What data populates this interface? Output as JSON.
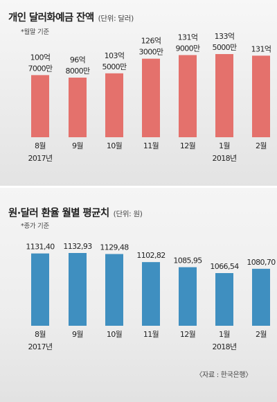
{
  "colors": {
    "top_bar": "#e4716c",
    "bottom_bar": "#3f8fc0"
  },
  "source": "〈자료 : 한국은행〉",
  "chart_data": [
    {
      "type": "bar",
      "title": "개인 달러화예금 잔액",
      "unit": "(단위: 달러)",
      "note": "*월말 기준",
      "categories": [
        "8월",
        "9월",
        "10월",
        "11월",
        "12월",
        "1월",
        "2월"
      ],
      "year_labels": [
        "2017년",
        "",
        "",
        "",
        "",
        "2018년",
        ""
      ],
      "values": [
        10070000000,
        9680000000,
        10350000000,
        12630000000,
        13190000000,
        13350000000,
        13100000000
      ],
      "value_labels": [
        [
          "100억",
          "7000만"
        ],
        [
          "96억",
          "8000만"
        ],
        [
          "103억",
          "5000만"
        ],
        [
          "126억",
          "3000만"
        ],
        [
          "131억",
          "9000만"
        ],
        [
          "133억",
          "5000만"
        ],
        [
          "131억"
        ]
      ]
    },
    {
      "type": "bar",
      "title": "원·달러 환율 월별 평균치",
      "unit": "(단위: 원)",
      "note": "*종가 기준",
      "categories": [
        "8월",
        "9월",
        "10월",
        "11월",
        "12월",
        "1월",
        "2월"
      ],
      "year_labels": [
        "2017년",
        "",
        "",
        "",
        "",
        "2018년",
        ""
      ],
      "values": [
        1131.4,
        1132.93,
        1129.48,
        1102.82,
        1085.95,
        1066.54,
        1080.7
      ],
      "value_labels": [
        [
          "1131,40"
        ],
        [
          "1132,93"
        ],
        [
          "1129,48"
        ],
        [
          "1102,82"
        ],
        [
          "1085,95"
        ],
        [
          "1066,54"
        ],
        [
          "1080,70"
        ]
      ]
    }
  ]
}
